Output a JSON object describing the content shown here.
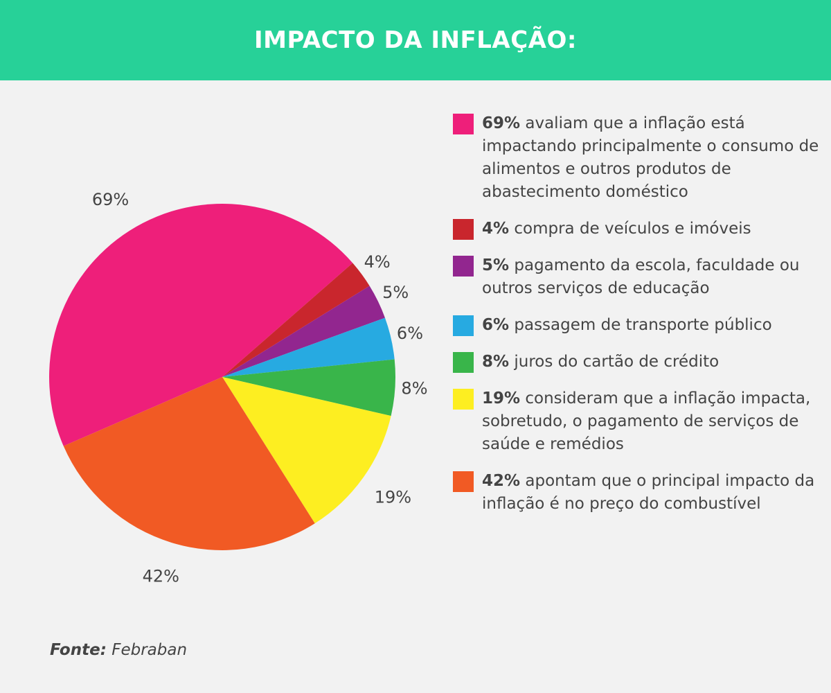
{
  "header": {
    "title": "IMPACTO DA INFLAÇÃO:"
  },
  "colors": {
    "header": "#27d198",
    "background": "#f2f2f2",
    "text": "#444444"
  },
  "chart_data": {
    "type": "pie",
    "title": "IMPACTO DA INFLAÇÃO:",
    "slices": [
      {
        "label": "69%",
        "value": 69,
        "color": "#ee1f7a",
        "desc_value": "69%",
        "desc": " avaliam que a inflação está impactando principalmente o consumo de alimentos e outros produtos de abastecimento doméstico"
      },
      {
        "label": "4%",
        "value": 4,
        "color": "#c9262d",
        "desc_value": "4%",
        "desc": " compra de veículos e imóveis"
      },
      {
        "label": "5%",
        "value": 5,
        "color": "#92268f",
        "desc_value": "5%",
        "desc": " pagamento da escola, faculdade ou outros serviços de educação"
      },
      {
        "label": "6%",
        "value": 6,
        "color": "#27aae1",
        "desc_value": "6%",
        "desc": " passagem de transporte público"
      },
      {
        "label": "8%",
        "value": 8,
        "color": "#39b54a",
        "desc_value": "8%",
        "desc": " juros do cartão de crédito"
      },
      {
        "label": "19%",
        "value": 19,
        "color": "#fdee21",
        "desc_value": "19%",
        "desc": " consideram que a inflação impacta, sobretudo, o pagamento de serviços de saúde e remédios"
      },
      {
        "label": "42%",
        "value": 42,
        "color": "#f15a24",
        "desc_value": "42%",
        "desc": " apontam que o principal impacto da inflação é no preço do combustível"
      }
    ],
    "legend_position": "right"
  },
  "source": {
    "label": "Fonte:",
    "value": " Febraban"
  }
}
